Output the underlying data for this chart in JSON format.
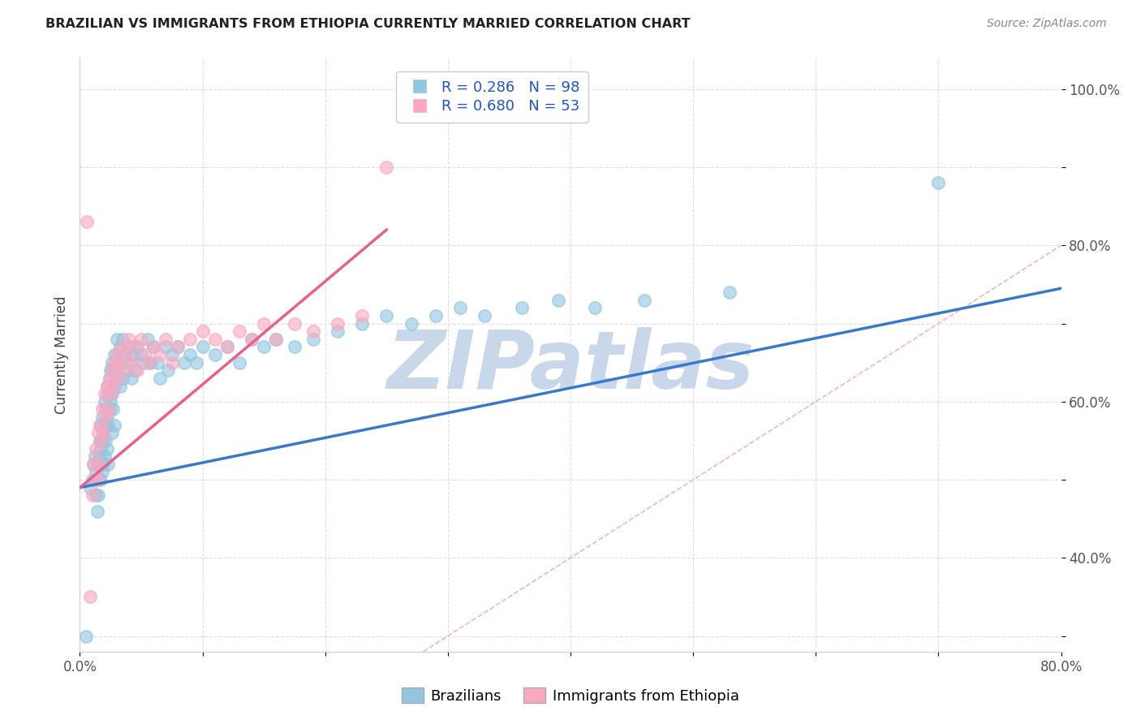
{
  "title": "BRAZILIAN VS IMMIGRANTS FROM ETHIOPIA CURRENTLY MARRIED CORRELATION CHART",
  "source": "Source: ZipAtlas.com",
  "ylabel_label": "Currently Married",
  "x_min": 0.0,
  "x_max": 0.8,
  "y_min": 0.28,
  "y_max": 1.04,
  "brazil_R": 0.286,
  "brazil_N": 98,
  "ethiopia_R": 0.68,
  "ethiopia_N": 53,
  "brazil_color": "#92C5DE",
  "ethiopia_color": "#F9A8BF",
  "brazil_line_color": "#3A78C9",
  "ethiopia_line_color": "#E86090",
  "diagonal_color": "#F0B0B0",
  "watermark_color": "#C8D8EA",
  "watermark_text": "ZIPatlas",
  "legend_label_brazil": "Brazilians",
  "legend_label_ethiopia": "Immigrants from Ethiopia",
  "brazil_scatter_x": [
    0.005,
    0.008,
    0.01,
    0.011,
    0.012,
    0.013,
    0.013,
    0.014,
    0.015,
    0.015,
    0.015,
    0.016,
    0.016,
    0.017,
    0.017,
    0.017,
    0.018,
    0.018,
    0.018,
    0.019,
    0.019,
    0.02,
    0.02,
    0.02,
    0.021,
    0.021,
    0.022,
    0.022,
    0.022,
    0.023,
    0.023,
    0.023,
    0.024,
    0.024,
    0.025,
    0.025,
    0.026,
    0.026,
    0.026,
    0.027,
    0.027,
    0.028,
    0.028,
    0.028,
    0.029,
    0.03,
    0.03,
    0.031,
    0.032,
    0.033,
    0.033,
    0.034,
    0.035,
    0.035,
    0.036,
    0.038,
    0.04,
    0.041,
    0.042,
    0.043,
    0.045,
    0.047,
    0.05,
    0.052,
    0.055,
    0.057,
    0.06,
    0.063,
    0.065,
    0.07,
    0.072,
    0.075,
    0.08,
    0.085,
    0.09,
    0.095,
    0.1,
    0.11,
    0.12,
    0.13,
    0.14,
    0.15,
    0.16,
    0.175,
    0.19,
    0.21,
    0.23,
    0.25,
    0.27,
    0.29,
    0.31,
    0.33,
    0.36,
    0.39,
    0.42,
    0.46,
    0.53,
    0.7
  ],
  "brazil_scatter_y": [
    0.3,
    0.49,
    0.5,
    0.52,
    0.53,
    0.48,
    0.51,
    0.46,
    0.52,
    0.5,
    0.48,
    0.55,
    0.53,
    0.57,
    0.54,
    0.5,
    0.58,
    0.55,
    0.51,
    0.56,
    0.52,
    0.6,
    0.57,
    0.53,
    0.59,
    0.55,
    0.62,
    0.58,
    0.54,
    0.61,
    0.57,
    0.52,
    0.63,
    0.59,
    0.64,
    0.6,
    0.65,
    0.61,
    0.56,
    0.64,
    0.59,
    0.66,
    0.62,
    0.57,
    0.64,
    0.68,
    0.63,
    0.65,
    0.66,
    0.67,
    0.62,
    0.65,
    0.68,
    0.63,
    0.66,
    0.64,
    0.67,
    0.65,
    0.63,
    0.66,
    0.64,
    0.67,
    0.66,
    0.65,
    0.68,
    0.65,
    0.67,
    0.65,
    0.63,
    0.67,
    0.64,
    0.66,
    0.67,
    0.65,
    0.66,
    0.65,
    0.67,
    0.66,
    0.67,
    0.65,
    0.68,
    0.67,
    0.68,
    0.67,
    0.68,
    0.69,
    0.7,
    0.71,
    0.7,
    0.71,
    0.72,
    0.71,
    0.72,
    0.73,
    0.72,
    0.73,
    0.74,
    0.88
  ],
  "ethiopia_scatter_x": [
    0.006,
    0.008,
    0.01,
    0.011,
    0.012,
    0.013,
    0.014,
    0.015,
    0.015,
    0.016,
    0.017,
    0.018,
    0.019,
    0.02,
    0.021,
    0.022,
    0.023,
    0.024,
    0.025,
    0.026,
    0.027,
    0.028,
    0.03,
    0.031,
    0.032,
    0.034,
    0.036,
    0.038,
    0.04,
    0.042,
    0.045,
    0.047,
    0.05,
    0.053,
    0.056,
    0.06,
    0.065,
    0.07,
    0.075,
    0.08,
    0.09,
    0.1,
    0.11,
    0.12,
    0.13,
    0.14,
    0.15,
    0.16,
    0.175,
    0.19,
    0.21,
    0.23,
    0.25
  ],
  "ethiopia_scatter_y": [
    0.83,
    0.35,
    0.48,
    0.52,
    0.5,
    0.54,
    0.5,
    0.56,
    0.52,
    0.57,
    0.55,
    0.59,
    0.56,
    0.61,
    0.58,
    0.62,
    0.59,
    0.63,
    0.61,
    0.64,
    0.62,
    0.65,
    0.66,
    0.63,
    0.65,
    0.67,
    0.64,
    0.66,
    0.68,
    0.65,
    0.67,
    0.64,
    0.68,
    0.66,
    0.65,
    0.67,
    0.66,
    0.68,
    0.65,
    0.67,
    0.68,
    0.69,
    0.68,
    0.67,
    0.69,
    0.68,
    0.7,
    0.68,
    0.7,
    0.69,
    0.7,
    0.71,
    0.9
  ],
  "brazil_trend_x": [
    0.0,
    0.8
  ],
  "brazil_trend_y": [
    0.49,
    0.745
  ],
  "ethiopia_trend_x": [
    0.0,
    0.25
  ],
  "ethiopia_trend_y": [
    0.49,
    0.82
  ],
  "x_tick_positions": [
    0.0,
    0.1,
    0.2,
    0.3,
    0.4,
    0.5,
    0.6,
    0.7,
    0.8
  ],
  "x_tick_labels": [
    "0.0%",
    "",
    "",
    "",
    "",
    "",
    "",
    "",
    "80.0%"
  ],
  "y_tick_positions": [
    0.3,
    0.4,
    0.5,
    0.6,
    0.7,
    0.8,
    0.9,
    1.0
  ],
  "y_tick_labels": [
    "",
    "40.0%",
    "",
    "60.0%",
    "",
    "80.0%",
    "",
    "100.0%"
  ]
}
